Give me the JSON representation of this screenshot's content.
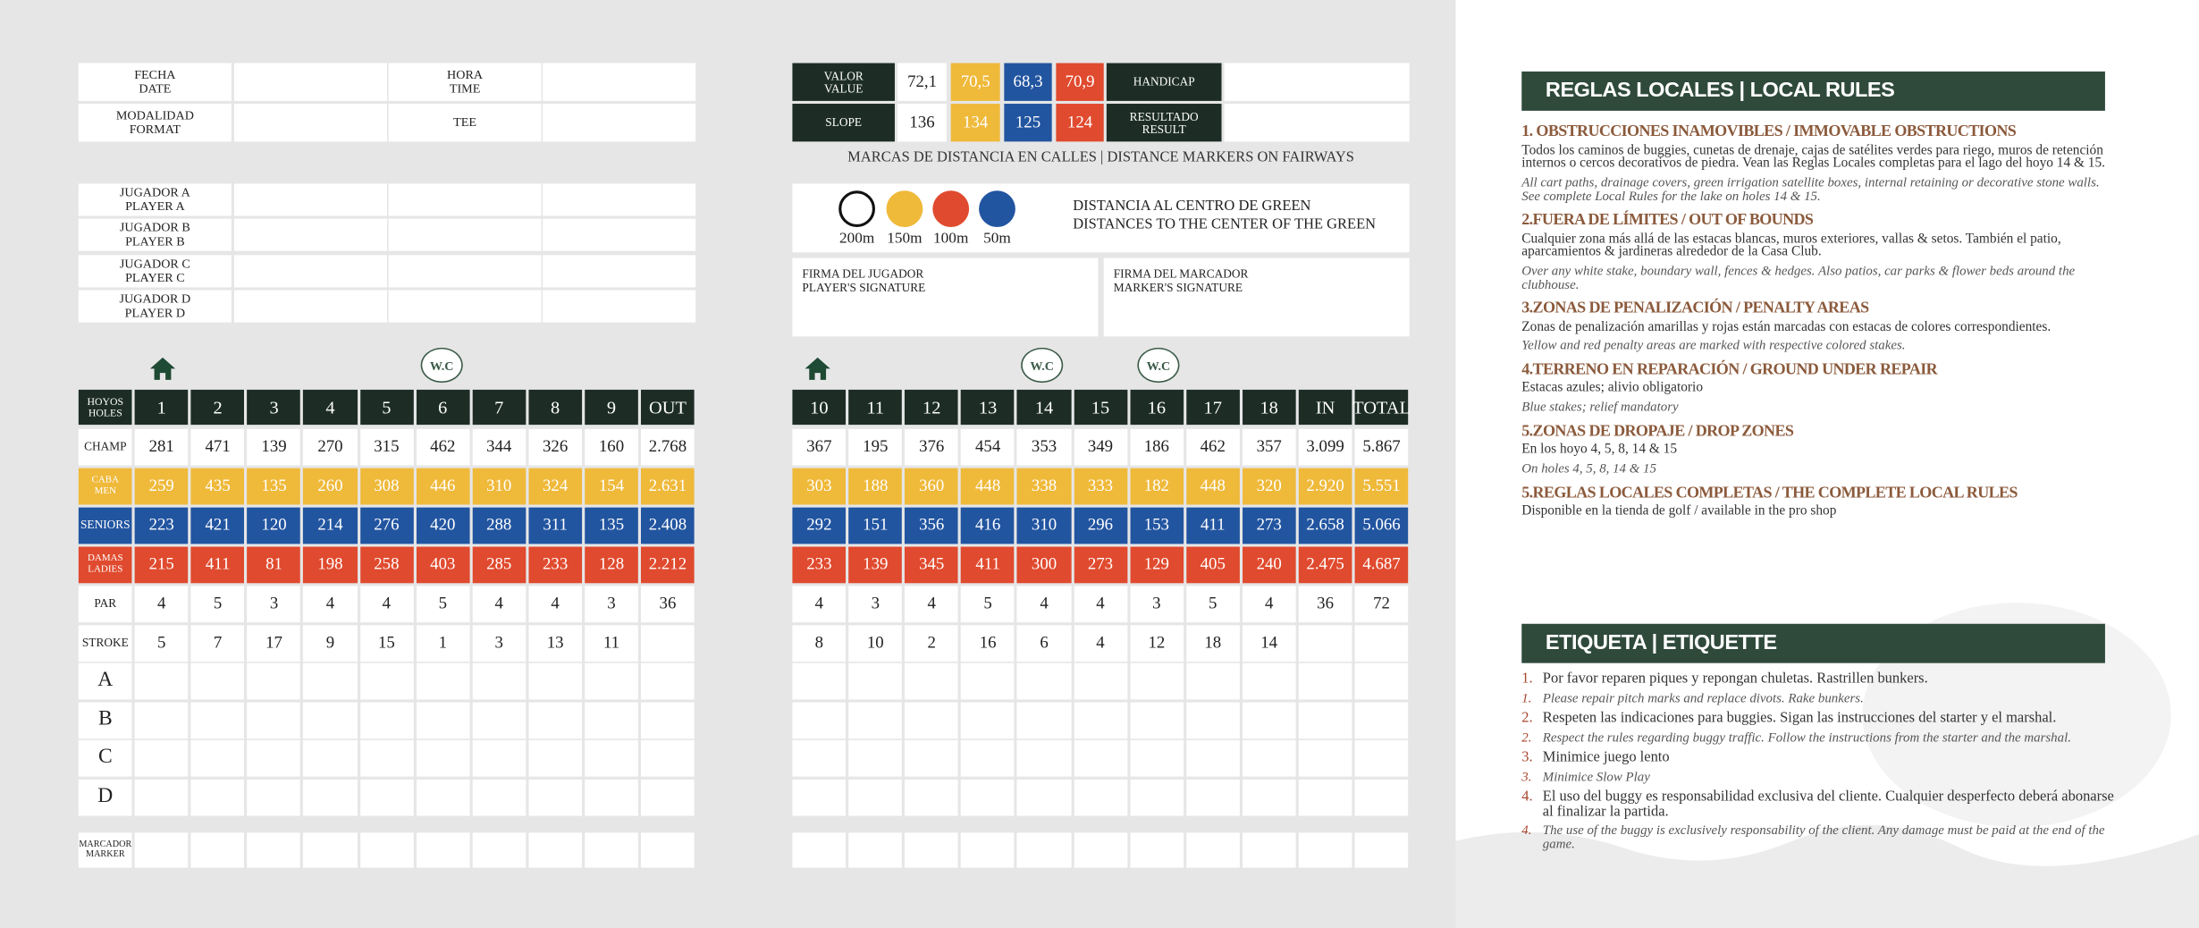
{
  "info": {
    "labels": [
      [
        "FECHA",
        "DATE"
      ],
      [
        "HORA",
        "TIME"
      ],
      [
        "MODALIDAD",
        "FORMAT"
      ],
      [
        "TEE"
      ]
    ]
  },
  "players": [
    [
      "JUGADOR A",
      "PLAYER A"
    ],
    [
      "JUGADOR B",
      "PLAYER B"
    ],
    [
      "JUGADOR C",
      "PLAYER C"
    ],
    [
      "JUGADOR D",
      "PLAYER D"
    ]
  ],
  "ratings": [
    {
      "label": [
        "VALOR",
        "VALUE"
      ],
      "values": [
        "72,1",
        "70,5",
        "68,3",
        "70,9"
      ],
      "result": [
        "HANDICAP"
      ]
    },
    {
      "label": [
        "SLOPE"
      ],
      "values": [
        "136",
        "134",
        "125",
        "124"
      ],
      "result": [
        "RESULTADO",
        "RESULT"
      ]
    }
  ],
  "distance": {
    "title": "MARCAS DE DISTANCIA EN CALLES | DISTANCE MARKERS ON FAIRWAYS",
    "markers": [
      "200m",
      "150m",
      "100m",
      "50m"
    ],
    "note": [
      "DISTANCIA AL CENTRO DE GREEN",
      "DISTANCES TO THE CENTER OF THE GREEN"
    ]
  },
  "signatures": [
    [
      "FIRMA DEL JUGADOR",
      "PLAYER'S SIGNATURE"
    ],
    [
      "FIRMA DEL MARCADOR",
      "MARKER'S SIGNATURE"
    ]
  ],
  "wc": "W.C",
  "front": {
    "holes_label": [
      "HOYOS",
      "HOLES"
    ],
    "holes": [
      "1",
      "2",
      "3",
      "4",
      "5",
      "6",
      "7",
      "8",
      "9",
      "OUT"
    ],
    "rows": [
      {
        "label": [
          "CHAMP"
        ],
        "cells": [
          "281",
          "471",
          "139",
          "270",
          "315",
          "462",
          "344",
          "326",
          "160",
          "2.768"
        ]
      },
      {
        "label": [
          "CABA",
          "MEN"
        ],
        "cells": [
          "259",
          "435",
          "135",
          "260",
          "308",
          "446",
          "310",
          "324",
          "154",
          "2.631"
        ]
      },
      {
        "label": [
          "SENIORS"
        ],
        "cells": [
          "223",
          "421",
          "120",
          "214",
          "276",
          "420",
          "288",
          "311",
          "135",
          "2.408"
        ]
      },
      {
        "label": [
          "DAMAS",
          "LADIES"
        ],
        "cells": [
          "215",
          "411",
          "81",
          "198",
          "258",
          "403",
          "285",
          "233",
          "128",
          "2.212"
        ]
      },
      {
        "label": [
          "PAR"
        ],
        "cells": [
          "4",
          "5",
          "3",
          "4",
          "4",
          "5",
          "4",
          "4",
          "3",
          "36"
        ]
      },
      {
        "label": [
          "STROKE"
        ],
        "cells": [
          "5",
          "7",
          "17",
          "9",
          "15",
          "1",
          "3",
          "13",
          "11"
        ]
      },
      {
        "label": [
          "A"
        ]
      },
      {
        "label": [
          "B"
        ]
      },
      {
        "label": [
          "C"
        ]
      },
      {
        "label": [
          "D"
        ]
      }
    ],
    "marker_label": [
      "MARCADOR",
      "MARKER"
    ]
  },
  "back": {
    "holes": [
      "10",
      "11",
      "12",
      "13",
      "14",
      "15",
      "16",
      "17",
      "18",
      "IN",
      "TOTAL"
    ],
    "rows": [
      {
        "cells": [
          "367",
          "195",
          "376",
          "454",
          "353",
          "349",
          "186",
          "462",
          "357",
          "3.099",
          "5.867"
        ]
      },
      {
        "cells": [
          "303",
          "188",
          "360",
          "448",
          "338",
          "333",
          "182",
          "448",
          "320",
          "2.920",
          "5.551"
        ]
      },
      {
        "cells": [
          "292",
          "151",
          "356",
          "416",
          "310",
          "296",
          "153",
          "411",
          "273",
          "2.658",
          "5.066"
        ]
      },
      {
        "cells": [
          "233",
          "139",
          "345",
          "411",
          "300",
          "273",
          "129",
          "405",
          "240",
          "2.475",
          "4.687"
        ]
      },
      {
        "cells": [
          "4",
          "3",
          "4",
          "5",
          "4",
          "4",
          "3",
          "5",
          "4",
          "36",
          "72"
        ]
      },
      {
        "cells": [
          "8",
          "10",
          "2",
          "16",
          "6",
          "4",
          "12",
          "18",
          "14"
        ]
      },
      {},
      {},
      {},
      {}
    ]
  },
  "rules": {
    "title": "REGLAS LOCALES | LOCAL RULES",
    "items": [
      {
        "heading": "1. OBSTRUCCIONES INAMOVIBLES / IMMOVABLE OBSTRUCTIONS",
        "es": "Todos los caminos de buggies, cunetas de drenaje, cajas de satélites verdes para riego, muros de retención internos o cercos decorativos de piedra. Vean las Reglas Locales completas para el lago del hoyo 14 & 15.",
        "en": "All cart paths, drainage covers, green irrigation satellite boxes, internal retaining or decorative stone walls. See complete Local Rules for the lake on holes 14 & 15."
      },
      {
        "heading": "2.FUERA DE LÍMITES / OUT OF BOUNDS",
        "es": "Cualquier zona más allá de las estacas blancas, muros exteriores, vallas & setos. También el patio, aparcamientos & jardineras alrededor de la Casa Club.",
        "en": "Over any white stake, boundary wall, fences & hedges. Also patios, car parks & flower beds around the clubhouse."
      },
      {
        "heading": "3.ZONAS DE PENALIZACIÓN / PENALTY AREAS",
        "es": "Zonas de penalización amarillas y rojas están marcadas con estacas de colores correspondientes.",
        "en": "Yellow and red penalty areas are marked with respective colored stakes."
      },
      {
        "heading": "4.TERRENO EN REPARACIÓN / GROUND UNDER REPAIR",
        "es": "Estacas azules; alivio obligatorio",
        "en": "Blue stakes; relief  mandatory"
      },
      {
        "heading": "5.ZONAS DE DROPAJE / DROP ZONES",
        "es": "En los hoyo 4, 5, 8, 14 & 15",
        "en": "On holes 4, 5, 8, 14 & 15"
      },
      {
        "heading": "5.REGLAS LOCALES COMPLETAS / THE COMPLETE LOCAL RULES",
        "es": "Disponible en la tienda de golf  / available in the pro shop"
      }
    ]
  },
  "etiquette": {
    "title": "ETIQUETA | ETIQUETTE",
    "items": [
      {
        "num": "1.",
        "es": "Por favor reparen piques y repongan chuletas. Rastrillen bunkers.",
        "en": "Please repair pitch marks and replace divots. Rake bunkers."
      },
      {
        "num": "2.",
        "es": "Respeten las indicaciones para buggies. Sigan las instrucciones del starter y el marshal.",
        "en": "Respect the rules regarding buggy traffic. Follow the instructions from the starter and the marshal."
      },
      {
        "num": "3.",
        "es": "Minimice juego lento",
        "en": "Minimice Slow Play"
      },
      {
        "num": "4.",
        "es": "El uso del buggy es responsabilidad exclusiva del cliente. Cualquier desperfecto deberá abonarse al finalizar la partida.",
        "en": "The use of the buggy is exclusively responsability of the client. Any damage must be paid at the end of the game."
      }
    ]
  }
}
